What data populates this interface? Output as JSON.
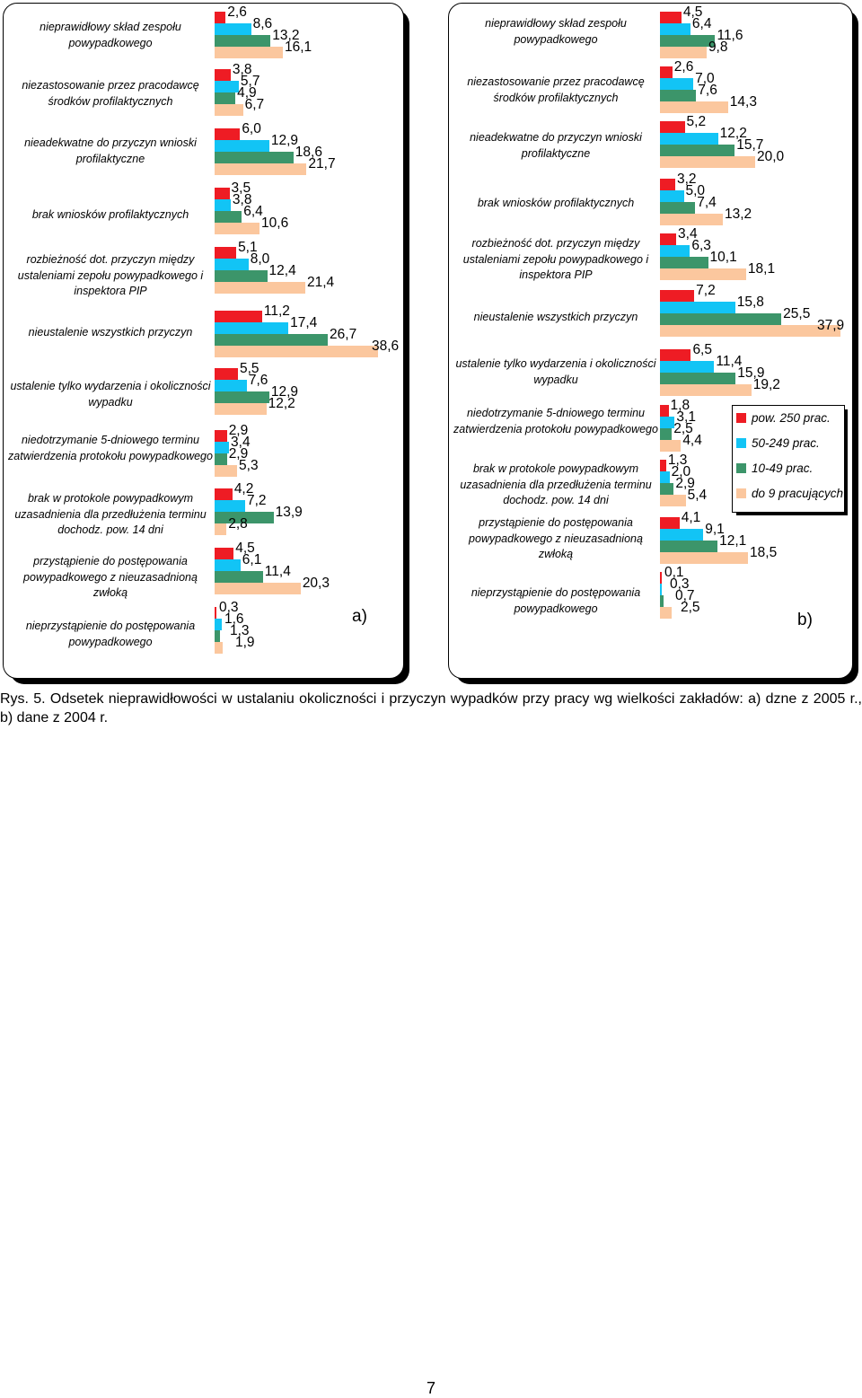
{
  "series": [
    {
      "name": "pow. 250 prac.",
      "color": "#ee1c24"
    },
    {
      "name": "50-249 prac.",
      "color": "#12c4f5"
    },
    {
      "name": "10-49 prac.",
      "color": "#3c956a"
    },
    {
      "name": "do 9 pracujących",
      "color": "#fbc79e"
    }
  ],
  "chart_data": [
    {
      "type": "bar",
      "orientation": "horizontal",
      "panel_label": "a)",
      "categories": [
        "nieprawidłowy skład zespołu powypadkowego",
        "niezastosowanie przez pracodawcę środków profilaktycznych",
        "nieadekwatne do przyczyn wnioski profilaktyczne",
        "brak wniosków profilaktycznych",
        "rozbieżność dot. przyczyn między ustaleniami zepołu powypadkowego i inspektora PIP",
        "nieustalenie wszystkich przyczyn",
        "ustalenie tylko wydarzenia i okoliczności wypadku",
        "niedotrzymanie 5-dniowego terminu zatwierdzenia protokołu powypadkowego",
        "brak w protokole powypadkowym uzasadnienia dla przedłużenia terminu dochodz. pow. 14 dni",
        "przystąpienie do postępowania powypadkowego z nieuzasadnioną zwłoką",
        "nieprzystąpienie do postępowania powypadkowego"
      ],
      "series": [
        {
          "name": "pow. 250 prac.",
          "values": [
            2.6,
            3.8,
            6.0,
            3.5,
            5.1,
            11.2,
            5.5,
            2.9,
            4.2,
            4.5,
            0.3
          ]
        },
        {
          "name": "50-249 prac.",
          "values": [
            8.6,
            5.7,
            12.9,
            3.8,
            8.0,
            17.4,
            7.6,
            3.4,
            7.2,
            6.1,
            1.6
          ]
        },
        {
          "name": "10-49 prac.",
          "values": [
            13.2,
            4.9,
            18.6,
            6.4,
            12.4,
            26.7,
            12.9,
            2.9,
            13.9,
            11.4,
            1.3
          ]
        },
        {
          "name": "do 9 pracujących",
          "values": [
            16.1,
            6.7,
            21.7,
            10.6,
            21.4,
            38.6,
            12.2,
            5.3,
            2.8,
            20.3,
            1.9
          ]
        }
      ],
      "labels": [
        [
          "2,6",
          "8,6",
          "13,2",
          "16,1"
        ],
        [
          "3,8",
          "5,7",
          "4,9",
          "6,7"
        ],
        [
          "6,0",
          "12,9",
          "18,6",
          "21,7"
        ],
        [
          "3,5",
          "3,8",
          "6,4",
          "10,6"
        ],
        [
          "5,1",
          "8,0",
          "12,4",
          "21,4"
        ],
        [
          "11,2",
          "17,4",
          "26,7",
          "38,6"
        ],
        [
          "5,5",
          "7,6",
          "12,9",
          "12,2"
        ],
        [
          "2,9",
          "3,4",
          "2,9",
          "5,3"
        ],
        [
          "4,2",
          "7,2",
          "13,9",
          "2,8"
        ],
        [
          "4,5",
          "6,1",
          "11,4",
          "20,3"
        ],
        [
          "0,3",
          "1,6",
          "1,3",
          "1,9"
        ]
      ]
    },
    {
      "type": "bar",
      "orientation": "horizontal",
      "panel_label": "b)",
      "categories": [
        "nieprawidłowy skład zespołu powypadkowego",
        "niezastosowanie przez pracodawcę środków profilaktycznych",
        "nieadekwatne do przyczyn wnioski profilaktyczne",
        "brak wniosków profilaktycznych",
        "rozbieżność dot. przyczyn między ustaleniami zepołu powypadkowego i inspektora PIP",
        "nieustalenie wszystkich przyczyn",
        "ustalenie tylko wydarzenia i okoliczności wypadku",
        "niedotrzymanie 5-dniowego terminu zatwierdzenia protokołu powypadkowego",
        "brak w protokole powypadkowym uzasadnienia dla przedłużenia terminu dochodz. pow. 14 dni",
        "przystąpienie do postępowania powypadkowego z nieuzasadnioną zwłoką",
        "nieprzystąpienie do postępowania powypadkowego"
      ],
      "series": [
        {
          "name": "pow. 250 prac.",
          "values": [
            4.5,
            2.6,
            5.2,
            3.2,
            3.4,
            7.2,
            6.5,
            1.8,
            1.3,
            4.1,
            0.1
          ]
        },
        {
          "name": "50-249 prac.",
          "values": [
            6.4,
            7.0,
            12.2,
            5.0,
            6.3,
            15.8,
            11.4,
            3.1,
            2.0,
            9.1,
            0.3
          ]
        },
        {
          "name": "10-49 prac.",
          "values": [
            11.6,
            7.6,
            15.7,
            7.4,
            10.1,
            25.5,
            15.9,
            2.5,
            2.9,
            12.1,
            0.7
          ]
        },
        {
          "name": "do 9 pracujących",
          "values": [
            9.8,
            14.3,
            20.0,
            13.2,
            18.1,
            37.9,
            19.2,
            4.4,
            5.4,
            18.5,
            2.5
          ]
        }
      ],
      "labels": [
        [
          "4,5",
          "6,4",
          "11,6",
          "9,8"
        ],
        [
          "2,6",
          "7,0",
          "7,6",
          "14,3"
        ],
        [
          "5,2",
          "12,2",
          "15,7",
          "20,0"
        ],
        [
          "3,2",
          "5,0",
          "7,4",
          "13,2"
        ],
        [
          "3,4",
          "6,3",
          "10,1",
          "18,1"
        ],
        [
          "7,2",
          "15,8",
          "25,5",
          "37,9"
        ],
        [
          "6,5",
          "11,4",
          "15,9",
          "19,2"
        ],
        [
          "1,8",
          "3,1",
          "2,5",
          "4,4"
        ],
        [
          "1,3",
          "2,0",
          "2,9",
          "5,4"
        ],
        [
          "4,1",
          "9,1",
          "12,1",
          "18,5"
        ],
        [
          "0,1",
          "0,3",
          "0,7",
          "2,5"
        ]
      ]
    }
  ],
  "caption": "Rys. 5. Odsetek nieprawidłowości w ustalaniu okoliczności i przyczyn wypadków przy pracy wg wielkości zakładów: a) dzne z 2005 r., b) dane z 2004 r.",
  "page_number": "7"
}
